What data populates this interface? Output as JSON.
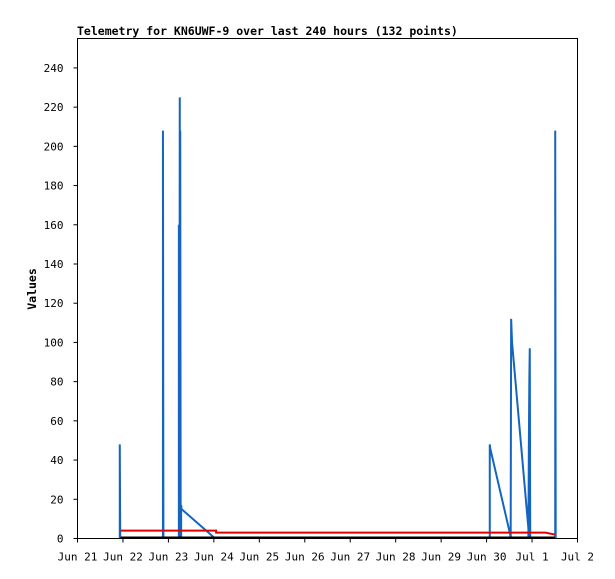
{
  "chart_data": {
    "type": "line",
    "title": "Telemetry for KN6UWF-9 over last 240 hours (132 points)",
    "xlabel": "",
    "ylabel": "Values",
    "x_ticks": [
      "Jun 21",
      "Jun 22",
      "Jun 23",
      "Jun 24",
      "Jun 25",
      "Jun 26",
      "Jun 27",
      "Jun 28",
      "Jun 29",
      "Jun 30",
      "Jul 1",
      "Jul 2"
    ],
    "y_ticks": [
      "0",
      "20",
      "40",
      "60",
      "80",
      "100",
      "120",
      "140",
      "160",
      "180",
      "200",
      "220",
      "240"
    ],
    "xlim": [
      0,
      11
    ],
    "ylim": [
      0,
      255
    ],
    "grid": false,
    "series": [
      {
        "color": "#1565c0",
        "x": [
          0.93,
          0.93,
          0.94,
          1.88,
          1.88,
          1.89,
          2.23,
          2.23,
          2.24,
          2.25,
          2.25,
          2.26,
          2.27,
          2.28,
          2.28,
          2.29,
          3.03,
          3.05,
          9.07,
          9.07,
          9.08,
          9.52,
          9.53,
          9.54,
          9.56,
          9.92,
          9.92,
          9.93,
          9.94,
          9.95,
          9.96,
          10.51,
          10.51,
          10.52
        ],
        "y": [
          0,
          48,
          0,
          0,
          208,
          0,
          0,
          160,
          0,
          225,
          0,
          208,
          0,
          0,
          17,
          15,
          0,
          0,
          0,
          48,
          46,
          2,
          0,
          112,
          100,
          5,
          0,
          48,
          80,
          97,
          0,
          0,
          208,
          0
        ]
      },
      {
        "color": "#e00000",
        "x": [
          0.95,
          3.05,
          3.05,
          10.05,
          10.3,
          10.5
        ],
        "y": [
          4,
          4,
          3,
          3,
          3,
          2
        ]
      },
      {
        "color": "#000000",
        "x": [
          0.95,
          10.5
        ],
        "y": [
          0.5,
          0.5
        ]
      }
    ]
  }
}
